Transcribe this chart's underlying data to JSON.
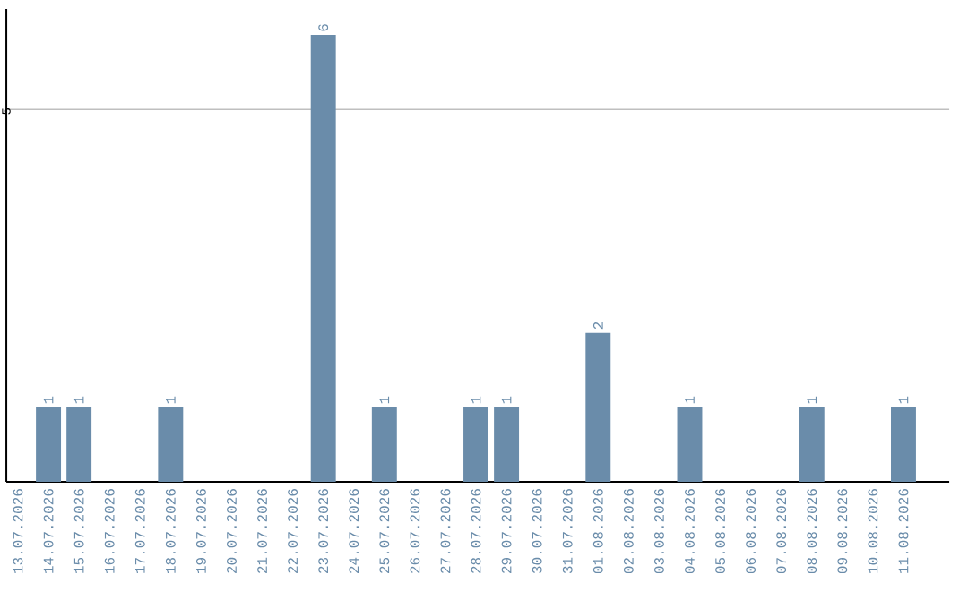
{
  "chart_data": {
    "type": "bar",
    "categories": [
      "13.07.2026",
      "14.07.2026",
      "15.07.2026",
      "16.07.2026",
      "17.07.2026",
      "18.07.2026",
      "19.07.2026",
      "20.07.2026",
      "21.07.2026",
      "22.07.2026",
      "23.07.2026",
      "24.07.2026",
      "25.07.2026",
      "26.07.2026",
      "27.07.2026",
      "28.07.2026",
      "29.07.2026",
      "30.07.2026",
      "31.07.2026",
      "01.08.2026",
      "02.08.2026",
      "03.08.2026",
      "04.08.2026",
      "05.08.2026",
      "06.08.2026",
      "07.08.2026",
      "08.08.2026",
      "09.08.2026",
      "10.08.2026",
      "11.08.2026"
    ],
    "values": [
      0,
      1,
      1,
      0,
      0,
      1,
      0,
      0,
      0,
      0,
      6,
      0,
      1,
      0,
      0,
      1,
      1,
      0,
      0,
      2,
      0,
      0,
      1,
      0,
      0,
      0,
      1,
      0,
      0,
      1
    ],
    "value_labels": [
      null,
      "1",
      "1",
      null,
      null,
      "1",
      null,
      null,
      null,
      null,
      "6",
      null,
      "1",
      null,
      null,
      "1",
      "1",
      null,
      null,
      "2",
      null,
      null,
      "1",
      null,
      null,
      null,
      "1",
      null,
      null,
      "1"
    ],
    "color": "#6a8caa",
    "ylim": [
      0,
      6.35
    ],
    "yticks": [
      5
    ],
    "grid": "y"
  }
}
